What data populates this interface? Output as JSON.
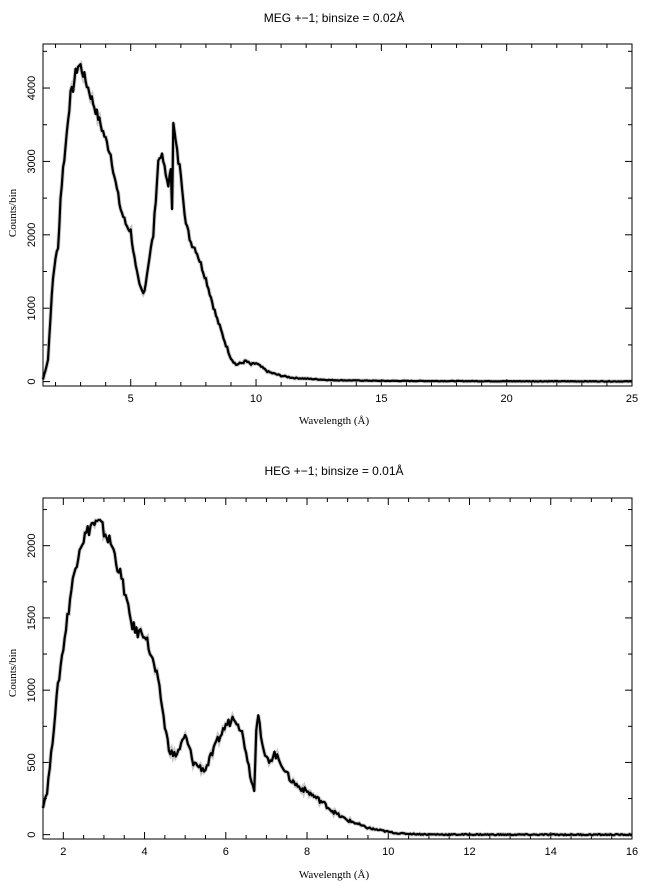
{
  "chart_data": [
    {
      "type": "line",
      "title": "MEG +−1; binsize = 0.02Å",
      "xlabel": "Wavelength (Å)",
      "ylabel": "Counts/bin",
      "xlim": [
        1.5,
        25
      ],
      "ylim": [
        -60,
        4600
      ],
      "xticks": [
        5,
        10,
        15,
        20,
        25
      ],
      "xtick_labels": [
        "5",
        "10",
        "15",
        "20",
        "25"
      ],
      "yticks": [
        0,
        1000,
        2000,
        3000,
        4000
      ],
      "ytick_labels": [
        "0",
        "1000",
        "2000",
        "3000",
        "4000"
      ],
      "x_minor_step": 1,
      "y_minor_step": 500,
      "grid": false,
      "series": [
        {
          "x": [
            1.5,
            1.7,
            1.8,
            1.9,
            2.0,
            2.1,
            2.2,
            2.3,
            2.4,
            2.5,
            2.6,
            2.7,
            2.8,
            2.9,
            3.0,
            3.1,
            3.2,
            3.3,
            3.4,
            3.6,
            3.8,
            4.0,
            4.2,
            4.4,
            4.6,
            4.8,
            5.0,
            5.2,
            5.35,
            5.5,
            5.6,
            5.7,
            5.8,
            5.9,
            6.0,
            6.1,
            6.2,
            6.3,
            6.4,
            6.5,
            6.6,
            6.65,
            6.7,
            6.8,
            6.9,
            7.0,
            7.2,
            7.4,
            7.6,
            7.8,
            8.0,
            8.2,
            8.4,
            8.6,
            8.8,
            9.0,
            9.2,
            9.4,
            9.6,
            9.8,
            10.0,
            10.2,
            10.5,
            11.0,
            11.5,
            12.0,
            13.0,
            14.0,
            15.0,
            17.0,
            20.0,
            25.0
          ],
          "values": [
            30,
            300,
            900,
            1400,
            1700,
            1800,
            2500,
            2900,
            3200,
            3600,
            3900,
            4000,
            4200,
            4300,
            4300,
            4200,
            4100,
            4000,
            3900,
            3700,
            3500,
            3300,
            3100,
            2700,
            2350,
            2150,
            2050,
            1550,
            1300,
            1200,
            1350,
            1600,
            1800,
            2000,
            2500,
            3000,
            3100,
            3000,
            2800,
            2700,
            2850,
            2400,
            3500,
            3250,
            3000,
            2850,
            2150,
            1900,
            1800,
            1600,
            1400,
            1150,
            900,
            700,
            500,
            320,
            230,
            250,
            280,
            230,
            250,
            200,
            130,
            80,
            50,
            40,
            20,
            15,
            10,
            8,
            5,
            3
          ]
        }
      ]
    },
    {
      "type": "line",
      "title": "HEG +−1; binsize = 0.01Å",
      "xlabel": "Wavelength (Å)",
      "ylabel": "Counts/bin",
      "xlim": [
        1.5,
        16
      ],
      "ylim": [
        -30,
        2330
      ],
      "xticks": [
        2,
        4,
        6,
        8,
        10,
        12,
        14,
        16
      ],
      "xtick_labels": [
        "2",
        "4",
        "6",
        "8",
        "10",
        "12",
        "14",
        "16"
      ],
      "yticks": [
        0,
        500,
        1000,
        1500,
        2000
      ],
      "ytick_labels": [
        "0",
        "500",
        "1000",
        "1500",
        "2000"
      ],
      "x_minor_step": 0.5,
      "y_minor_step": 250,
      "grid": false,
      "series": [
        {
          "x": [
            1.5,
            1.6,
            1.7,
            1.8,
            1.9,
            2.0,
            2.1,
            2.2,
            2.3,
            2.4,
            2.5,
            2.6,
            2.7,
            2.8,
            2.9,
            3.0,
            3.1,
            3.2,
            3.3,
            3.4,
            3.5,
            3.6,
            3.7,
            3.8,
            3.9,
            4.0,
            4.1,
            4.2,
            4.3,
            4.4,
            4.5,
            4.6,
            4.7,
            4.8,
            4.9,
            5.0,
            5.1,
            5.2,
            5.3,
            5.4,
            5.5,
            5.6,
            5.7,
            5.8,
            5.9,
            6.0,
            6.1,
            6.2,
            6.3,
            6.4,
            6.5,
            6.6,
            6.7,
            6.75,
            6.8,
            6.9,
            7.0,
            7.1,
            7.2,
            7.3,
            7.4,
            7.5,
            7.6,
            7.8,
            8.0,
            8.2,
            8.4,
            8.6,
            8.8,
            9.0,
            9.2,
            9.4,
            9.6,
            9.8,
            10.0,
            10.2,
            10.4,
            10.6,
            10.8,
            11.0,
            11.5,
            12.0,
            13.0,
            14.0,
            15.0,
            16.0
          ],
          "values": [
            200,
            300,
            550,
            850,
            1100,
            1300,
            1500,
            1700,
            1850,
            2000,
            2050,
            2100,
            2150,
            2150,
            2150,
            2100,
            2050,
            2000,
            1900,
            1800,
            1700,
            1550,
            1450,
            1400,
            1400,
            1400,
            1300,
            1200,
            1100,
            950,
            750,
            600,
            550,
            560,
            620,
            680,
            600,
            500,
            480,
            460,
            450,
            520,
            580,
            650,
            700,
            760,
            780,
            820,
            780,
            700,
            580,
            420,
            300,
            750,
            850,
            600,
            520,
            520,
            560,
            520,
            480,
            420,
            380,
            330,
            300,
            260,
            220,
            170,
            130,
            100,
            80,
            55,
            40,
            30,
            20,
            10,
            7,
            5,
            3,
            2,
            1,
            1,
            0,
            0,
            0,
            0
          ]
        }
      ]
    }
  ]
}
